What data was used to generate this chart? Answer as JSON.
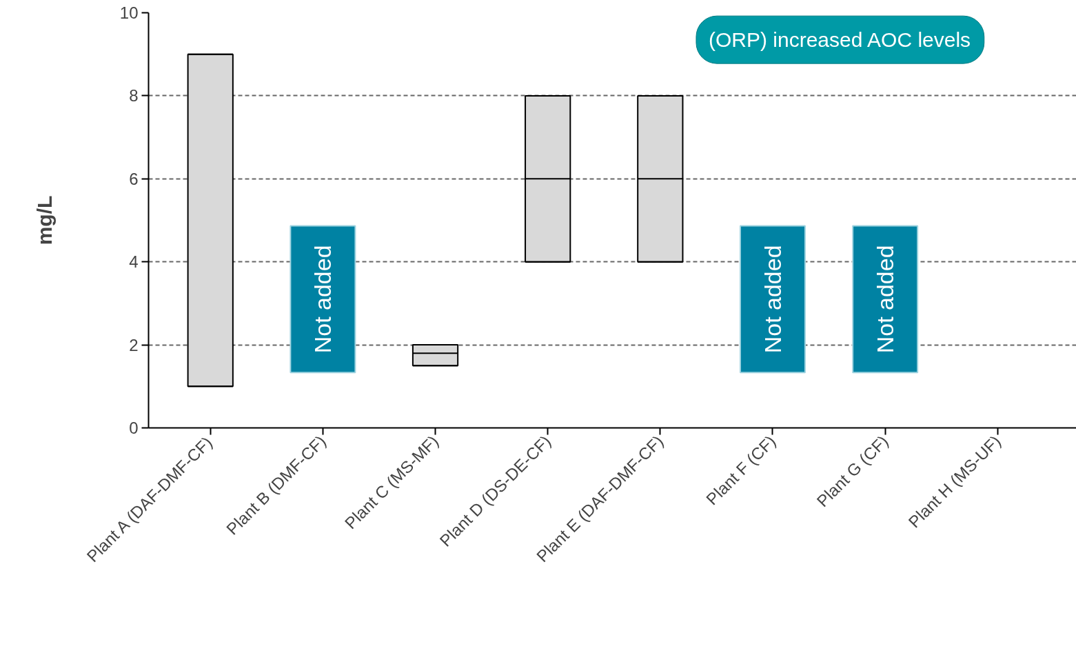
{
  "chart_data": {
    "type": "box",
    "ylabel": "mg/L",
    "categories": [
      "Plant A (DAF-DMF-CF)",
      "Plant B (DMF-CF)",
      "Plant C (MS-MF)",
      "Plant D (DS-DE-CF)",
      "Plant E (DAF-DMF-CF)",
      "Plant F (CF)",
      "Plant G (CF)",
      "Plant H (MS-UF)"
    ],
    "boxes": [
      {
        "low": 1,
        "q1": 1,
        "q3": 9,
        "high": 9
      },
      null,
      {
        "low": 1.5,
        "q1": 1.5,
        "median": 1.8,
        "q3": 2,
        "high": 2
      },
      {
        "low": 4,
        "q1": 4,
        "median": 6,
        "q3": 8,
        "high": 8
      },
      {
        "low": 4,
        "q1": 4,
        "median": 6,
        "q3": 8,
        "high": 8
      },
      null,
      null,
      null
    ],
    "color": "#d9d9d9",
    "ylim": [
      0,
      10
    ],
    "yticks": [
      0,
      2,
      4,
      6,
      8,
      10
    ],
    "grid": "y",
    "annotations": [
      "Not added",
      "Not added",
      "Not added",
      "(ORP) increased AOC levels"
    ]
  }
}
